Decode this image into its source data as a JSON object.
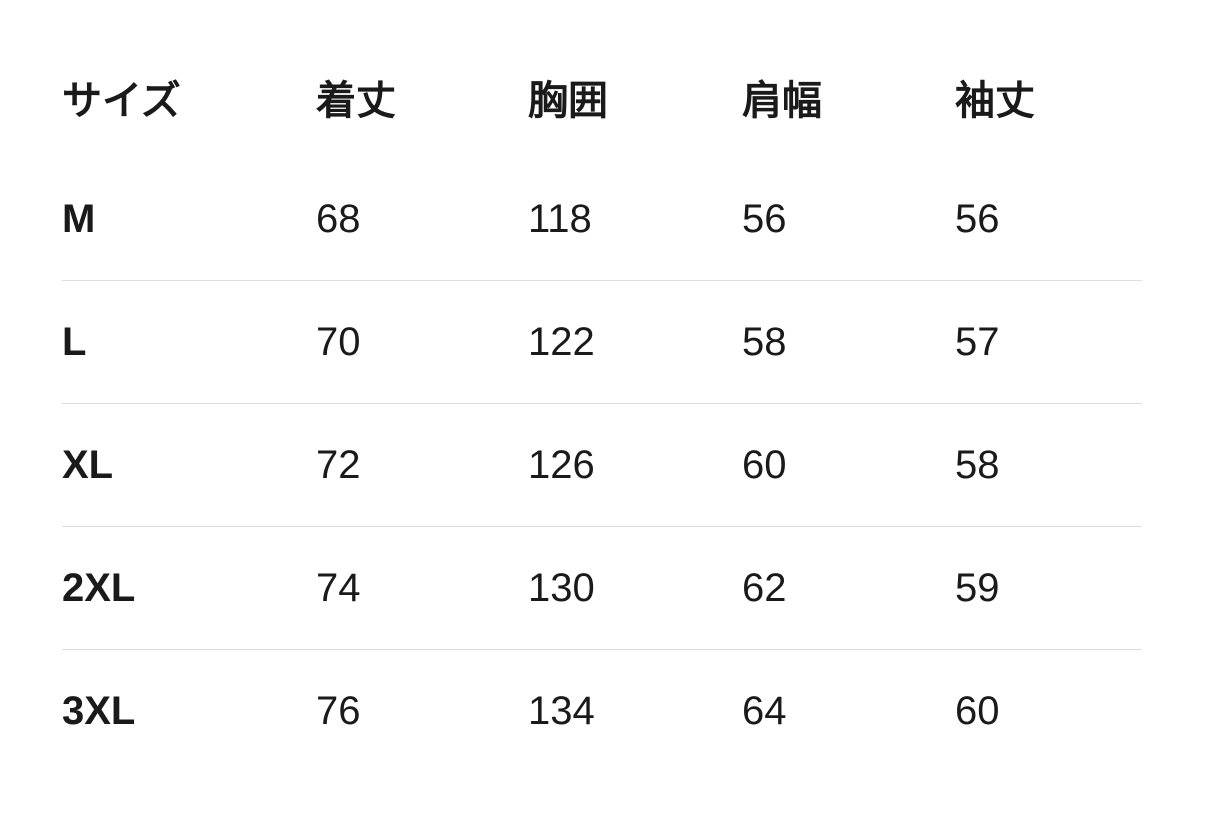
{
  "table": {
    "headers": [
      "サイズ",
      "着丈",
      "胸囲",
      "肩幅",
      "袖丈"
    ],
    "rows": [
      [
        "M",
        "68",
        "118",
        "56",
        "56"
      ],
      [
        "L",
        "70",
        "122",
        "58",
        "57"
      ],
      [
        "XL",
        "72",
        "126",
        "60",
        "58"
      ],
      [
        "2XL",
        "74",
        "130",
        "62",
        "59"
      ],
      [
        "3XL",
        "76",
        "134",
        "64",
        "60"
      ]
    ]
  },
  "colors": {
    "text": "#1a1a1a",
    "divider": "#dedede",
    "background": "#ffffff"
  }
}
